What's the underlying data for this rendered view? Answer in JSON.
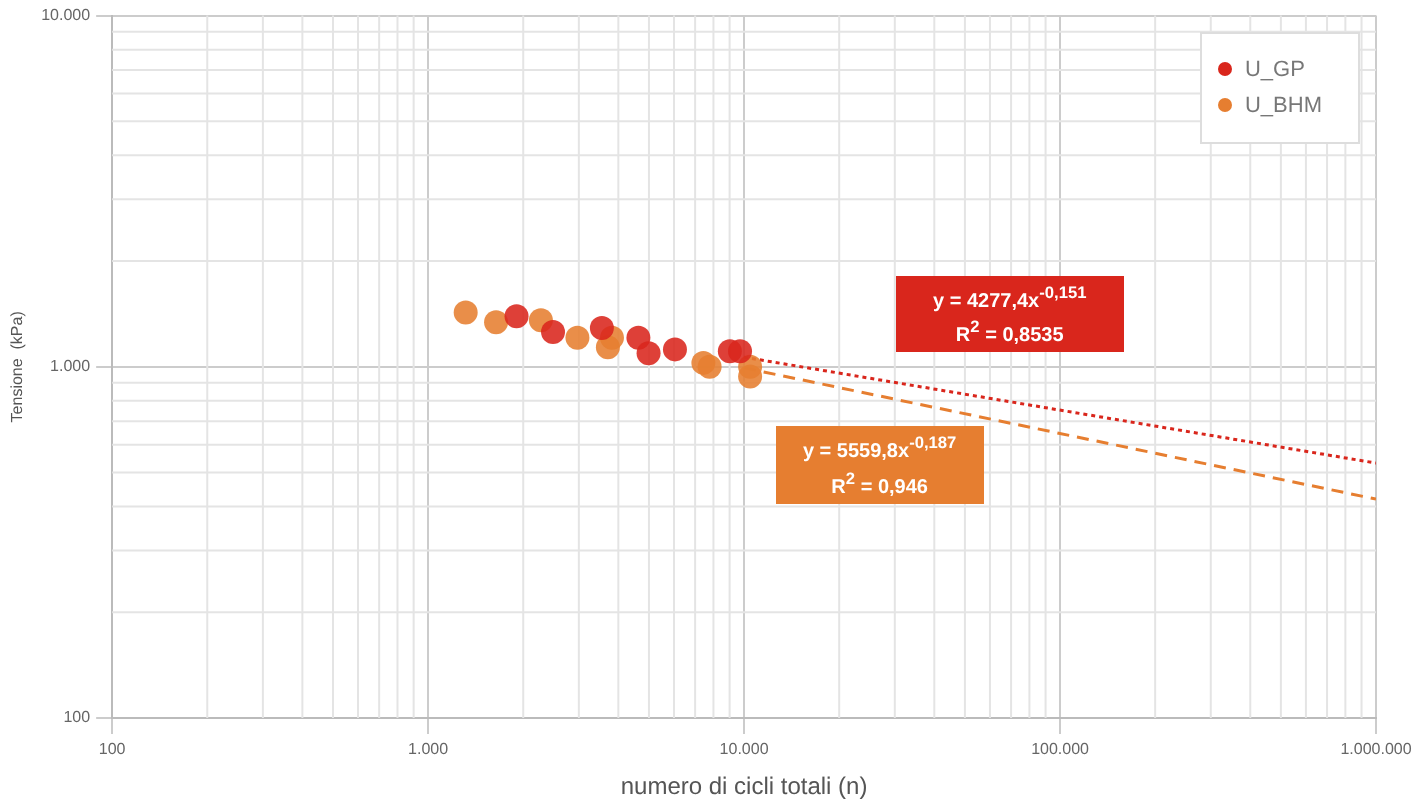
{
  "chart_data": {
    "type": "scatter",
    "xlabel": "numero di cicli totali (n)",
    "ylabel": "Tensione  (kPa)",
    "series": [
      {
        "name": "U_GP",
        "color": "#d9261c",
        "x": [
          1905,
          2485,
          3548,
          4630,
          4986,
          6043,
          9016,
          9710
        ],
        "values": [
          1392,
          1257,
          1290,
          1210,
          1093,
          1121,
          1107,
          1107
        ],
        "marker": "circle"
      },
      {
        "name": "U_BHM",
        "color": "#e67e30",
        "x": [
          1315,
          1641,
          2275,
          2969,
          3707,
          3819,
          4986,
          7435,
          7780,
          10450,
          10450
        ],
        "values": [
          1428,
          1340,
          1357,
          1210,
          1136,
          1210,
          null,
          1026,
          1000,
          938,
          1000
        ],
        "marker": "circle"
      },
      {
        "type": "line",
        "color": "#d9261c",
        "line_style": "dotted",
        "x": [
          10000,
          1000000
        ],
        "values": [
          1065,
          532
        ],
        "marker": "none"
      },
      {
        "type": "line",
        "color": "#e67e30",
        "line_style": "dashed",
        "x": [
          10000,
          1000000
        ],
        "values": [
          993,
          420
        ],
        "marker": "none"
      }
    ],
    "annotations": [
      "y = 4277,4x$^{-0,151}$\nR$^{2}$ = 0,8535",
      "y = 5559,8x$^{-0,187}$\nR$^{2}$ = 0,946"
    ],
    "log": "xy",
    "xlim": [
      100,
      1000000
    ],
    "ylim": [
      100,
      10000
    ],
    "xticks": [
      {
        "value": 100,
        "label": "100"
      },
      {
        "value": 1000,
        "label": "1.000"
      },
      {
        "value": 10000,
        "label": "10.000"
      },
      {
        "value": 100000,
        "label": "100.000"
      },
      {
        "value": 1000000,
        "label": "1.000.000"
      }
    ],
    "yticks": [
      {
        "value": 100,
        "label": "100"
      },
      {
        "value": 1000,
        "label": "1.000"
      },
      {
        "value": 10000,
        "label": "10.000"
      }
    ],
    "grid": true,
    "legend": "top right"
  }
}
